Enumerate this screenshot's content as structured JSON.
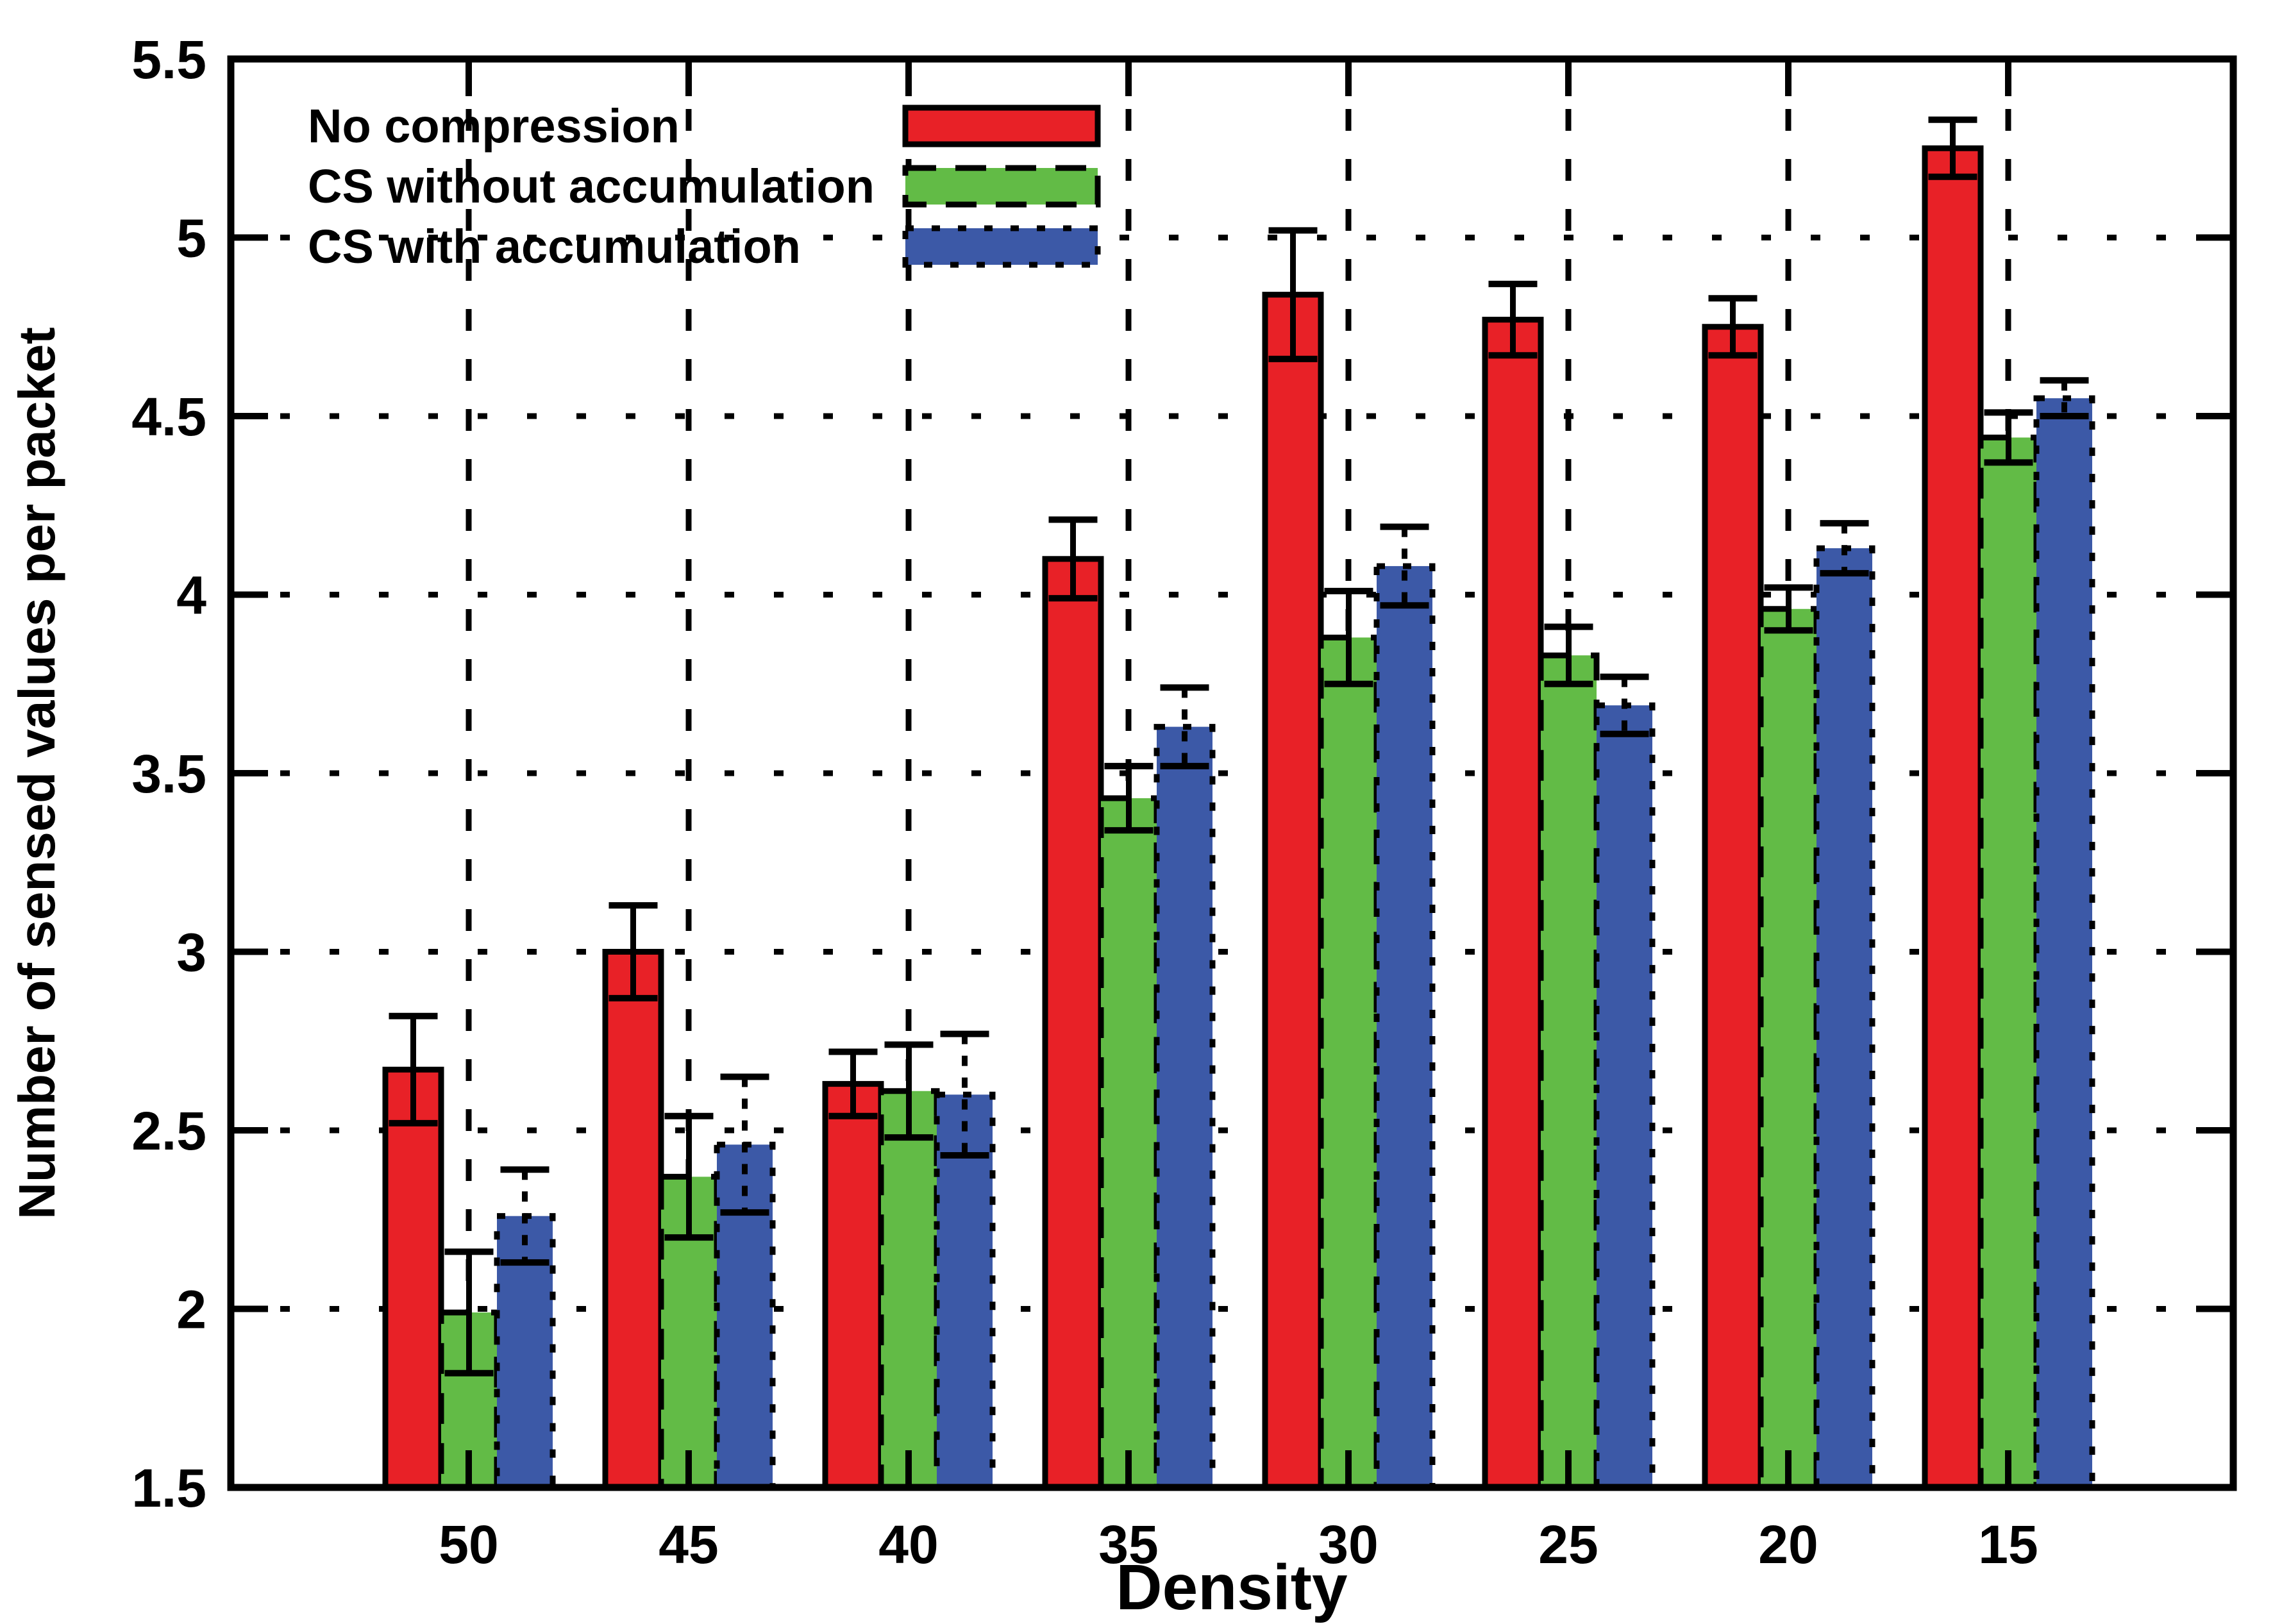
{
  "chart_data": {
    "type": "bar",
    "title": "",
    "xlabel": "Density",
    "ylabel": "Number of sensed values per packet",
    "categories": [
      "50",
      "45",
      "40",
      "35",
      "30",
      "25",
      "20",
      "15"
    ],
    "ylim": [
      1.5,
      5.5
    ],
    "ytick_labels": [
      "5.5",
      "5",
      "4.5",
      "4",
      "3.5",
      "3",
      "2.5",
      "2",
      "1.5"
    ],
    "grid": {
      "horizontal": "dotted",
      "vertical": "dotted"
    },
    "legend_position": "top-left-inside, sample to right of label",
    "series": [
      {
        "name": "No compression",
        "color": "#e82127",
        "border_style": "solid",
        "values": [
          2.67,
          3.0,
          2.63,
          4.1,
          4.84,
          4.77,
          4.75,
          5.25
        ],
        "errors": [
          0.15,
          0.13,
          0.09,
          0.11,
          0.18,
          0.1,
          0.08,
          0.08
        ]
      },
      {
        "name": "CS without accumulation",
        "color": "#62bb46",
        "border_style": "dashed",
        "values": [
          1.99,
          2.37,
          2.61,
          3.43,
          3.88,
          3.83,
          3.96,
          4.44
        ],
        "errors": [
          0.17,
          0.17,
          0.13,
          0.09,
          0.13,
          0.08,
          0.06,
          0.07
        ]
      },
      {
        "name": "CS with accumulation",
        "color": "#3c59a7",
        "border_style": "dotted",
        "values": [
          2.26,
          2.46,
          2.6,
          3.63,
          4.08,
          3.69,
          4.13,
          4.55
        ],
        "errors": [
          0.13,
          0.19,
          0.17,
          0.11,
          0.11,
          0.08,
          0.07,
          0.05
        ]
      }
    ],
    "axis_color": "#000000",
    "background_color": "#ffffff"
  }
}
